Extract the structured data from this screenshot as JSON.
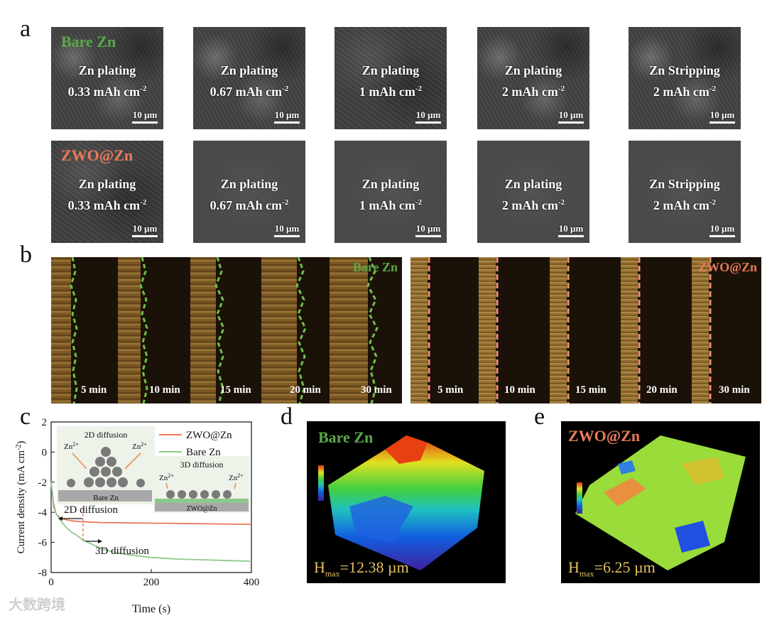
{
  "labels": {
    "a": "a",
    "b": "b",
    "c": "c",
    "d": "d",
    "e": "e"
  },
  "panel_a": {
    "tag_bare": "Bare Zn",
    "tag_zwo": "ZWO@Zn",
    "scale": "10 µm",
    "top_row": [
      {
        "line1": "Zn plating",
        "line2": "0.33 mAh cm",
        "sup": "-2"
      },
      {
        "line1": "Zn plating",
        "line2": "0.67 mAh cm",
        "sup": "-2"
      },
      {
        "line1": "Zn plating",
        "line2": "1 mAh cm",
        "sup": "-2"
      },
      {
        "line1": "Zn plating",
        "line2": "2 mAh cm",
        "sup": "-2"
      },
      {
        "line1": "Zn Stripping",
        "line2": "2 mAh cm",
        "sup": "-2"
      }
    ],
    "bottom_row": [
      {
        "line1": "Zn plating",
        "line2": "0.33 mAh cm",
        "sup": "-2"
      },
      {
        "line1": "Zn plating",
        "line2": "0.67 mAh cm",
        "sup": "-2"
      },
      {
        "line1": "Zn plating",
        "line2": "1 mAh cm",
        "sup": "-2"
      },
      {
        "line1": "Zn plating",
        "line2": "2 mAh cm",
        "sup": "-2"
      },
      {
        "line1": "Zn Stripping",
        "line2": "2 mAh cm",
        "sup": "-2"
      }
    ]
  },
  "panel_b": {
    "tag_bare": "Bare Zn",
    "tag_zwo": "ZWO@Zn",
    "times": [
      "5 min",
      "10 min",
      "15 min",
      "20 min",
      "30 min"
    ]
  },
  "panel_c": {
    "inset_2d_title": "2D diffusion",
    "inset_3d_title": "3D diffusion",
    "inset_ion": "Zn",
    "inset_ion_sup": "2+",
    "inset_bare_substrate": "Bare Zn",
    "inset_zwo_substrate": "ZWO@Zn",
    "annot_2d": "2D diffusion",
    "annot_3d": "3D diffusion"
  },
  "chart_data": {
    "type": "line",
    "xlabel": "Time (s)",
    "ylabel": "Current density (mA cm",
    "ylabel_sup": "-2",
    "ylabel_end": ")",
    "xlim": [
      0,
      400
    ],
    "ylim": [
      -8,
      2
    ],
    "xticks": [
      0,
      200,
      400
    ],
    "yticks": [
      2,
      0,
      -2,
      -4,
      -6,
      -8
    ],
    "legend_position": "top-right",
    "series": [
      {
        "name": "ZWO@Zn",
        "color": "#e8795a",
        "x": [
          0,
          5,
          10,
          15,
          20,
          30,
          40,
          50,
          60,
          80,
          100,
          150,
          200,
          250,
          300,
          350,
          400
        ],
        "y": [
          -2.0,
          -3.6,
          -4.1,
          -4.3,
          -4.4,
          -4.5,
          -4.55,
          -4.6,
          -4.62,
          -4.65,
          -4.68,
          -4.7,
          -4.72,
          -4.74,
          -4.76,
          -4.78,
          -4.8
        ]
      },
      {
        "name": "Bare Zn",
        "color": "#8fc98a",
        "x": [
          0,
          5,
          10,
          20,
          30,
          40,
          50,
          60,
          80,
          100,
          120,
          150,
          200,
          250,
          300,
          350,
          400
        ],
        "y": [
          -2.0,
          -3.4,
          -4.1,
          -4.6,
          -5.0,
          -5.3,
          -5.5,
          -5.75,
          -6.1,
          -6.4,
          -6.6,
          -6.8,
          -7.0,
          -7.1,
          -7.15,
          -7.2,
          -7.25
        ]
      }
    ]
  },
  "panel_d": {
    "tag": "Bare Zn",
    "hmax_label": "H",
    "hmax_sub": "max",
    "hmax_value": "=12.38 µm"
  },
  "panel_e": {
    "tag": "ZWO@Zn",
    "hmax_label": "H",
    "hmax_sub": "max",
    "hmax_value": "=6.25 µm"
  },
  "watermark": "大数跨境"
}
